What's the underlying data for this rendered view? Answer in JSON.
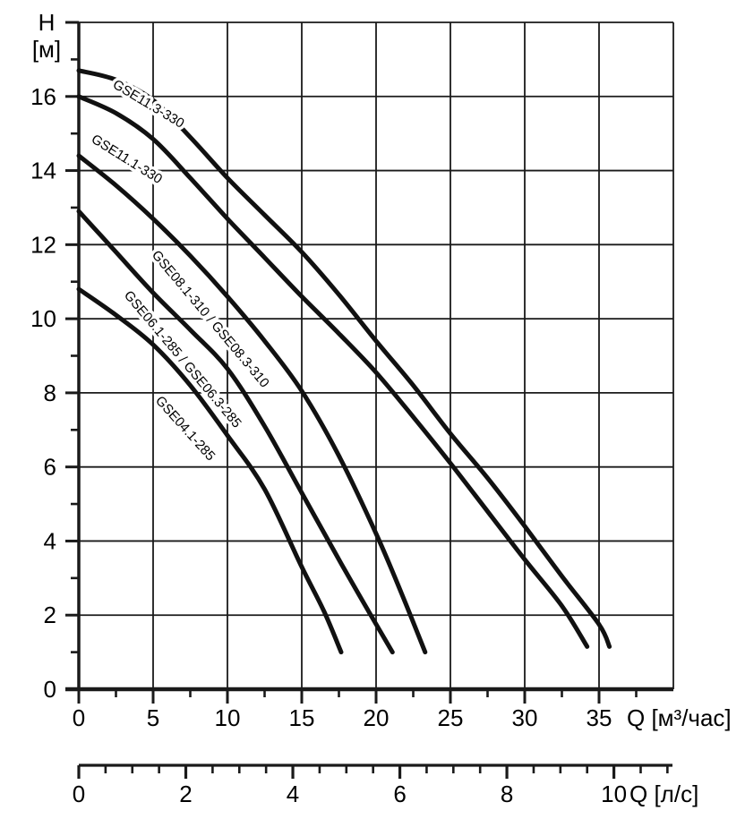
{
  "colors": {
    "ink": "#111111",
    "grid": "#1a1a1a",
    "background": "#ffffff"
  },
  "chart_data": {
    "type": "line",
    "grid": true,
    "ylabel_lines": [
      "H",
      "[м]"
    ],
    "x_axis": {
      "title": "Q [м³/час]",
      "min": 0,
      "max": 40,
      "major_tick_step": 5,
      "minor_tick_step": 2.5,
      "tick_labels": [
        "0",
        "5",
        "10",
        "15",
        "20",
        "25",
        "30",
        "35"
      ],
      "grid_step": 5
    },
    "y_axis": {
      "min": 0,
      "max": 18,
      "major_tick_step": 2,
      "minor_tick_step": 1,
      "tick_labels": [
        "0",
        "2",
        "4",
        "6",
        "8",
        "10",
        "12",
        "14",
        "16"
      ],
      "grid_step": 2
    },
    "x2_axis": {
      "title": "Q [л/с]",
      "min": 0,
      "max": 11,
      "tick_step": 0.5,
      "major_tick_step": 2,
      "tick_labels": [
        "0",
        "2",
        "4",
        "6",
        "8",
        "10"
      ],
      "m3h_per_unit": 3.6
    },
    "series": [
      {
        "name": "GSE11.3-330",
        "points": [
          [
            0,
            16.7
          ],
          [
            2.5,
            16.45
          ],
          [
            5,
            15.9
          ],
          [
            7.5,
            14.9
          ],
          [
            10,
            13.8
          ],
          [
            12.5,
            12.8
          ],
          [
            15,
            11.8
          ],
          [
            17.5,
            10.65
          ],
          [
            20,
            9.4
          ],
          [
            22.5,
            8.2
          ],
          [
            25,
            6.9
          ],
          [
            27.5,
            5.7
          ],
          [
            30,
            4.4
          ],
          [
            32.5,
            3.05
          ],
          [
            35,
            1.75
          ],
          [
            35.7,
            1.15
          ]
        ],
        "label": {
          "x": 125,
          "y": 97,
          "angle": 31
        }
      },
      {
        "name": "GSE11.1-330",
        "points": [
          [
            0,
            16.0
          ],
          [
            2.5,
            15.55
          ],
          [
            5,
            14.85
          ],
          [
            7.5,
            13.8
          ],
          [
            10,
            12.7
          ],
          [
            12.5,
            11.65
          ],
          [
            15,
            10.6
          ],
          [
            17.5,
            9.6
          ],
          [
            20,
            8.55
          ],
          [
            22.5,
            7.35
          ],
          [
            25,
            6.1
          ],
          [
            27.5,
            4.8
          ],
          [
            30,
            3.5
          ],
          [
            32.5,
            2.25
          ],
          [
            34.2,
            1.15
          ]
        ],
        "label": {
          "x": 101,
          "y": 158,
          "angle": 32
        }
      },
      {
        "name": "GSE08.1-310 / GSE08.3-310",
        "points": [
          [
            0,
            14.4
          ],
          [
            2.5,
            13.6
          ],
          [
            5,
            12.7
          ],
          [
            7.5,
            11.7
          ],
          [
            10,
            10.6
          ],
          [
            12.5,
            9.4
          ],
          [
            15,
            8.05
          ],
          [
            17.5,
            6.3
          ],
          [
            20,
            4.2
          ],
          [
            21.7,
            2.6
          ],
          [
            23.3,
            1.0
          ]
        ],
        "label": {
          "x": 169,
          "y": 285,
          "angle": 50
        }
      },
      {
        "name": "GSE06.1-285 / GSE06.3-285",
        "points": [
          [
            0,
            12.9
          ],
          [
            2.5,
            11.8
          ],
          [
            5,
            10.7
          ],
          [
            7.5,
            9.7
          ],
          [
            10,
            8.65
          ],
          [
            12.5,
            7.1
          ],
          [
            15,
            5.3
          ],
          [
            17.5,
            3.5
          ],
          [
            19.5,
            2.1
          ],
          [
            21.1,
            1.0
          ]
        ],
        "label": {
          "x": 138,
          "y": 330,
          "angle": 50
        }
      },
      {
        "name": "GSE04.1-285",
        "points": [
          [
            0,
            10.8
          ],
          [
            2.5,
            10.1
          ],
          [
            5,
            9.3
          ],
          [
            7.5,
            8.2
          ],
          [
            10,
            6.85
          ],
          [
            12.5,
            5.4
          ],
          [
            15,
            3.3
          ],
          [
            16.5,
            2.1
          ],
          [
            17.65,
            1.0
          ]
        ],
        "label": {
          "x": 173,
          "y": 448,
          "angle": 48
        }
      }
    ]
  }
}
